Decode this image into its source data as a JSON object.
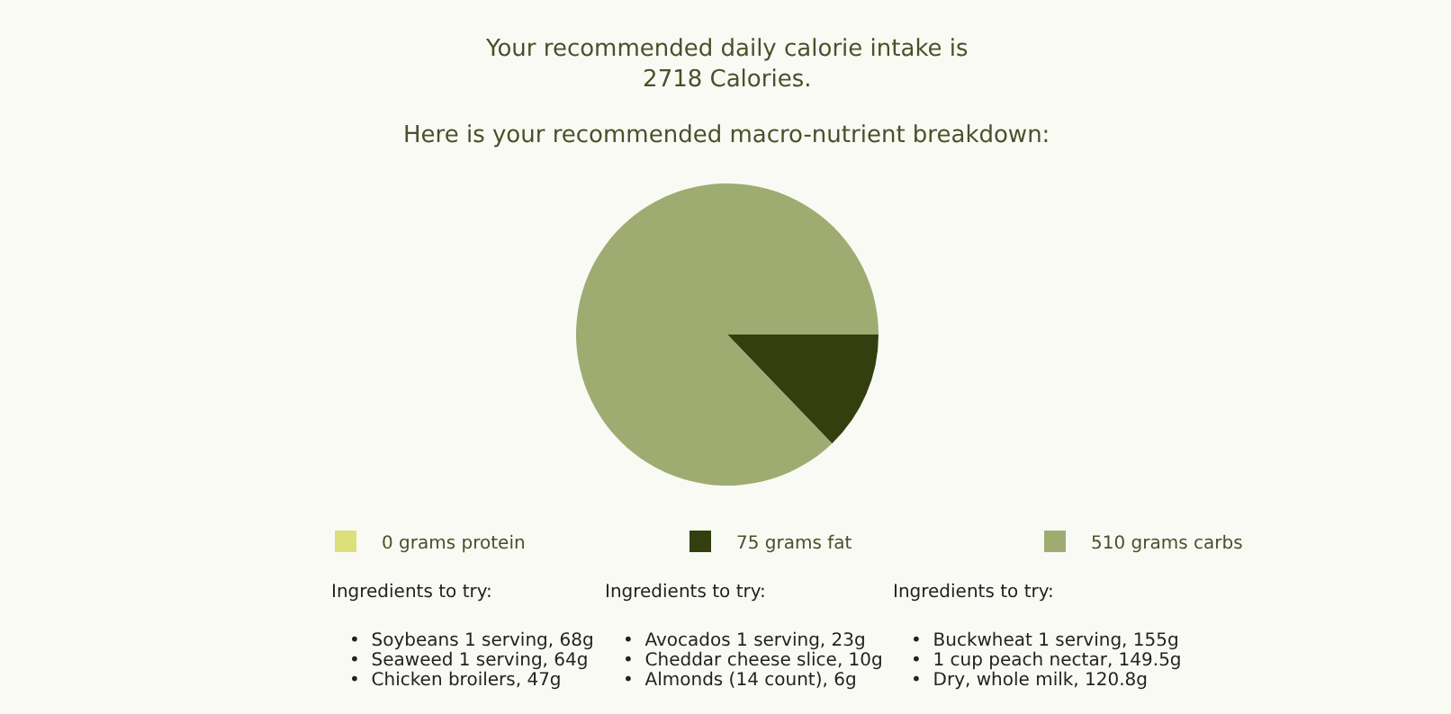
{
  "chart_data": {
    "type": "pie",
    "title": "Your recommended daily calorie intake is\n2718 Calories.",
    "subtitle": "Here is your recommended macro-nutrient breakdown:",
    "categories": [
      "0 grams protein",
      "75 grams fat",
      "510 grams carbs"
    ],
    "values": [
      0,
      75,
      510
    ],
    "colors": [
      "#dbe07a",
      "#343f10",
      "#9eac72"
    ],
    "legend": "bottom",
    "annotations": [
      "Ingredients to try:",
      "•  Soybeans 1 serving, 68g",
      "•  Seaweed 1 serving, 64g",
      "•  Chicken broilers, 47g",
      "Ingredients to try:",
      "•  Avocados 1 serving, 23g",
      "•  Cheddar cheese slice, 10g",
      "•  Almonds (14 count), 6g",
      "Ingredients to try:",
      "•  Buckwheat 1 serving, 155g",
      "•  1 cup peach nectar, 149.5g",
      "•  Dry, whole milk, 120.8g"
    ]
  }
}
